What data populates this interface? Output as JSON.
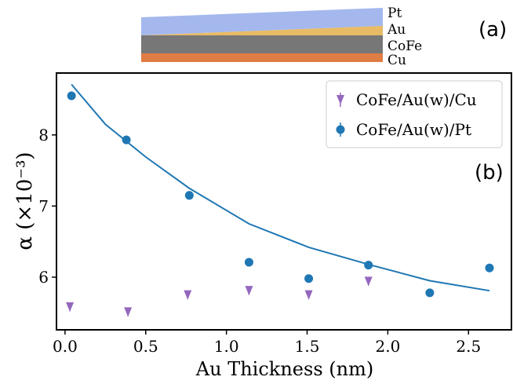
{
  "chart_data": {
    "type": "scatter",
    "xlabel": "Au Thickness (nm)",
    "ylabel": "α (×10⁻³)",
    "xlim": [
      -0.053,
      2.766
    ],
    "ylim": [
      5.26,
      8.87
    ],
    "xticks": [
      {
        "value": 0,
        "label": "0.0"
      },
      {
        "value": 0.5,
        "label": "0.5"
      },
      {
        "value": 1,
        "label": "1.0"
      },
      {
        "value": 1.5,
        "label": "1.5"
      },
      {
        "value": 2,
        "label": "2.0"
      },
      {
        "value": 2.5,
        "label": "2.5"
      }
    ],
    "yticks": [
      6,
      7,
      8
    ],
    "legend": "upper right",
    "series": [
      {
        "name": "CoFe/Au(w)/Cu",
        "color": "#9467bd",
        "marker": "triangle-down",
        "x": [
          0.03,
          0.39,
          0.76,
          1.14,
          1.51,
          1.88
        ],
        "values": [
          5.58,
          5.51,
          5.75,
          5.81,
          5.75,
          5.94
        ],
        "errors": [
          0.06,
          0.06,
          0.06,
          0.06,
          0.06,
          0.06
        ]
      },
      {
        "name": "CoFe/Au(w)/Pt",
        "color": "#1f77b4",
        "marker": "circle",
        "x": [
          0.04,
          0.38,
          0.77,
          1.14,
          1.51,
          1.88,
          2.26,
          2.63
        ],
        "values": [
          8.55,
          7.93,
          7.15,
          6.21,
          5.98,
          6.17,
          5.78,
          6.13
        ],
        "errors": [
          0.06,
          0.06,
          0.06,
          0.06,
          0.05,
          0.06,
          0.03,
          0.06
        ]
      }
    ],
    "fit": {
      "color": "#1f77b4",
      "x": [
        0.04,
        0.25,
        0.5,
        0.77,
        1.14,
        1.51,
        1.88,
        2.26,
        2.63
      ],
      "values": [
        8.71,
        8.15,
        7.69,
        7.25,
        6.75,
        6.42,
        6.18,
        5.95,
        5.81
      ]
    },
    "annotations": {
      "panel_a": "(a)",
      "panel_b": "(b)",
      "layers": [
        "Pt",
        "Au",
        "CoFe",
        "Cu"
      ]
    }
  }
}
